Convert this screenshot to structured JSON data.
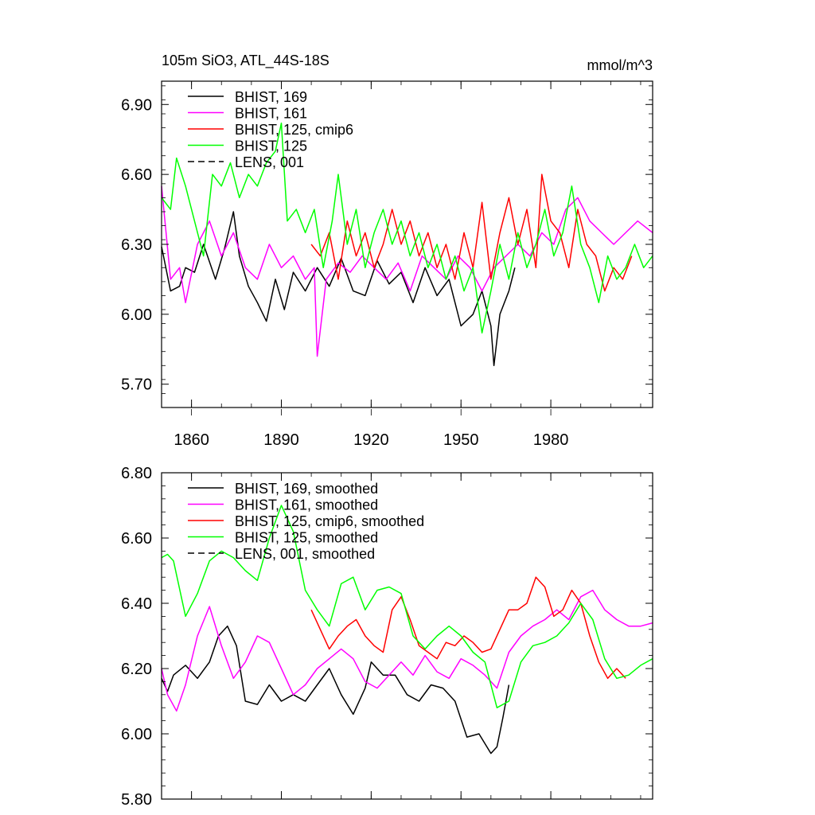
{
  "chart_data": [
    {
      "type": "line",
      "title": "105m SiO3, ATL_44S-18S",
      "units": "mmol/m^3",
      "xlim": [
        1850,
        2014
      ],
      "ylim": [
        5.6,
        7.0
      ],
      "x_ticks": [
        1860,
        1890,
        1920,
        1950,
        1980
      ],
      "x_tick_labels": [
        "1860",
        "1890",
        "1920",
        "1950",
        "1980"
      ],
      "y_ticks": [
        5.7,
        6.0,
        6.3,
        6.6,
        6.9
      ],
      "y_tick_labels": [
        "5.70",
        "6.00",
        "6.30",
        "6.60",
        "6.90"
      ],
      "legend_position": "top-left",
      "series": [
        {
          "name": "BHIST, 169",
          "color": "#000000",
          "dash": "solid",
          "x": [
            1850,
            1853,
            1856,
            1858,
            1861,
            1864,
            1868,
            1871,
            1874,
            1876,
            1879,
            1882,
            1885,
            1888,
            1891,
            1894,
            1898,
            1902,
            1906,
            1910,
            1914,
            1918,
            1922,
            1926,
            1930,
            1934,
            1938,
            1942,
            1946,
            1950,
            1954,
            1957,
            1960,
            1961,
            1963,
            1966,
            1968
          ],
          "values": [
            6.29,
            6.1,
            6.12,
            6.2,
            6.18,
            6.3,
            6.15,
            6.28,
            6.44,
            6.25,
            6.12,
            6.05,
            5.97,
            6.15,
            6.02,
            6.18,
            6.1,
            6.2,
            6.12,
            6.24,
            6.1,
            6.08,
            6.23,
            6.13,
            6.18,
            6.05,
            6.2,
            6.08,
            6.15,
            5.95,
            6.0,
            6.1,
            5.95,
            5.78,
            6.0,
            6.1,
            6.2
          ]
        },
        {
          "name": "BHIST, 161",
          "color": "#ff00ff",
          "dash": "solid",
          "x": [
            1850,
            1853,
            1856,
            1858,
            1862,
            1866,
            1870,
            1874,
            1878,
            1882,
            1886,
            1890,
            1894,
            1898,
            1901,
            1902,
            1905,
            1909,
            1913,
            1917,
            1921,
            1925,
            1929,
            1933,
            1937,
            1941,
            1945,
            1949,
            1953,
            1957,
            1961,
            1965,
            1969,
            1973,
            1977,
            1981,
            1985,
            1989,
            1993,
            1997,
            2001,
            2005,
            2009,
            2014
          ],
          "values": [
            6.55,
            6.15,
            6.2,
            6.05,
            6.3,
            6.4,
            6.25,
            6.35,
            6.2,
            6.15,
            6.3,
            6.2,
            6.25,
            6.15,
            6.2,
            5.82,
            6.15,
            6.22,
            6.18,
            6.25,
            6.2,
            6.15,
            6.22,
            6.1,
            6.25,
            6.2,
            6.15,
            6.25,
            6.2,
            6.1,
            6.2,
            6.25,
            6.3,
            6.25,
            6.35,
            6.3,
            6.45,
            6.5,
            6.4,
            6.35,
            6.3,
            6.35,
            6.4,
            6.35
          ]
        },
        {
          "name": "BHIST, 125, cmip6",
          "color": "#ff0000",
          "dash": "solid",
          "x": [
            1900,
            1903,
            1906,
            1909,
            1912,
            1915,
            1918,
            1921,
            1924,
            1927,
            1930,
            1933,
            1936,
            1939,
            1942,
            1945,
            1948,
            1951,
            1954,
            1957,
            1960,
            1963,
            1966,
            1969,
            1972,
            1975,
            1977,
            1980,
            1983,
            1986,
            1989,
            1992,
            1995,
            1998,
            2001,
            2004,
            2007
          ],
          "values": [
            6.3,
            6.25,
            6.35,
            6.15,
            6.4,
            6.25,
            6.35,
            6.2,
            6.3,
            6.45,
            6.3,
            6.4,
            6.25,
            6.35,
            6.2,
            6.3,
            6.15,
            6.35,
            6.2,
            6.48,
            6.15,
            6.35,
            6.5,
            6.3,
            6.45,
            6.2,
            6.6,
            6.4,
            6.35,
            6.2,
            6.45,
            6.3,
            6.25,
            6.1,
            6.2,
            6.15,
            6.25
          ]
        },
        {
          "name": "BHIST, 125",
          "color": "#00ff00",
          "dash": "solid",
          "x": [
            1850,
            1853,
            1855,
            1858,
            1861,
            1864,
            1867,
            1870,
            1873,
            1876,
            1879,
            1882,
            1885,
            1888,
            1890,
            1892,
            1895,
            1898,
            1901,
            1904,
            1907,
            1909,
            1912,
            1915,
            1918,
            1921,
            1924,
            1927,
            1930,
            1933,
            1936,
            1939,
            1942,
            1945,
            1948,
            1951,
            1954,
            1957,
            1960,
            1963,
            1966,
            1969,
            1972,
            1975,
            1978,
            1981,
            1984,
            1987,
            1990,
            1993,
            1996,
            1999,
            2002,
            2005,
            2008,
            2011,
            2014
          ],
          "values": [
            6.5,
            6.45,
            6.67,
            6.55,
            6.4,
            6.25,
            6.6,
            6.55,
            6.65,
            6.5,
            6.6,
            6.55,
            6.65,
            6.7,
            6.82,
            6.4,
            6.45,
            6.35,
            6.45,
            6.2,
            6.4,
            6.6,
            6.3,
            6.45,
            6.2,
            6.35,
            6.45,
            6.3,
            6.4,
            6.25,
            6.35,
            6.2,
            6.3,
            6.15,
            6.25,
            6.1,
            6.2,
            5.92,
            6.1,
            6.3,
            6.15,
            6.35,
            6.2,
            6.3,
            6.45,
            6.25,
            6.35,
            6.55,
            6.3,
            6.2,
            6.05,
            6.25,
            6.15,
            6.2,
            6.3,
            6.2,
            6.25
          ]
        }
      ]
    },
    {
      "type": "line",
      "title": "",
      "xlim": [
        1850,
        2014
      ],
      "ylim": [
        5.8,
        6.8
      ],
      "y_ticks": [
        5.8,
        6.0,
        6.2,
        6.4,
        6.6,
        6.8
      ],
      "y_tick_labels": [
        "5.80",
        "6.00",
        "6.20",
        "6.40",
        "6.60",
        "6.80"
      ],
      "legend_position": "top-left",
      "series": [
        {
          "name": "BHIST, 169, smoothed",
          "color": "#000000",
          "dash": "solid",
          "x": [
            1850,
            1852,
            1854,
            1858,
            1862,
            1866,
            1869,
            1872,
            1875,
            1878,
            1882,
            1886,
            1890,
            1894,
            1898,
            1902,
            1906,
            1910,
            1914,
            1918,
            1920,
            1924,
            1928,
            1932,
            1936,
            1940,
            1944,
            1948,
            1952,
            1956,
            1960,
            1962,
            1964,
            1966
          ],
          "values": [
            6.17,
            6.13,
            6.18,
            6.21,
            6.17,
            6.22,
            6.3,
            6.33,
            6.27,
            6.1,
            6.09,
            6.15,
            6.1,
            6.12,
            6.1,
            6.15,
            6.2,
            6.12,
            6.06,
            6.14,
            6.22,
            6.18,
            6.18,
            6.12,
            6.1,
            6.15,
            6.14,
            6.1,
            5.99,
            6.0,
            5.94,
            5.96,
            6.05,
            6.15
          ]
        },
        {
          "name": "BHIST, 161, smoothed",
          "color": "#ff00ff",
          "dash": "solid",
          "x": [
            1850,
            1852,
            1855,
            1858,
            1862,
            1866,
            1870,
            1874,
            1878,
            1882,
            1886,
            1890,
            1894,
            1898,
            1902,
            1906,
            1910,
            1914,
            1918,
            1922,
            1926,
            1930,
            1934,
            1938,
            1942,
            1946,
            1950,
            1954,
            1958,
            1962,
            1966,
            1970,
            1974,
            1978,
            1982,
            1986,
            1990,
            1994,
            1998,
            2002,
            2006,
            2010,
            2014
          ],
          "values": [
            6.2,
            6.12,
            6.07,
            6.15,
            6.3,
            6.39,
            6.27,
            6.17,
            6.22,
            6.3,
            6.28,
            6.2,
            6.12,
            6.15,
            6.2,
            6.23,
            6.26,
            6.23,
            6.16,
            6.14,
            6.18,
            6.22,
            6.18,
            6.24,
            6.19,
            6.17,
            6.23,
            6.21,
            6.18,
            6.14,
            6.25,
            6.3,
            6.33,
            6.35,
            6.38,
            6.35,
            6.42,
            6.44,
            6.38,
            6.35,
            6.33,
            6.33,
            6.34
          ]
        },
        {
          "name": "BHIST, 125, cmip6, smoothed",
          "color": "#ff0000",
          "dash": "solid",
          "x": [
            1900,
            1903,
            1906,
            1909,
            1912,
            1915,
            1918,
            1921,
            1924,
            1927,
            1930,
            1933,
            1936,
            1939,
            1942,
            1945,
            1948,
            1951,
            1954,
            1957,
            1960,
            1963,
            1966,
            1969,
            1972,
            1975,
            1978,
            1981,
            1984,
            1987,
            1990,
            1993,
            1996,
            1999,
            2002,
            2005
          ],
          "values": [
            6.38,
            6.32,
            6.26,
            6.3,
            6.33,
            6.35,
            6.3,
            6.27,
            6.25,
            6.38,
            6.42,
            6.35,
            6.27,
            6.25,
            6.23,
            6.28,
            6.27,
            6.3,
            6.28,
            6.25,
            6.26,
            6.32,
            6.38,
            6.38,
            6.4,
            6.48,
            6.45,
            6.36,
            6.38,
            6.44,
            6.4,
            6.3,
            6.22,
            6.17,
            6.2,
            6.17
          ]
        },
        {
          "name": "BHIST, 125, smoothed",
          "color": "#00ff00",
          "dash": "solid",
          "x": [
            1850,
            1852,
            1854,
            1858,
            1862,
            1866,
            1870,
            1874,
            1878,
            1882,
            1886,
            1890,
            1894,
            1898,
            1902,
            1906,
            1910,
            1914,
            1918,
            1922,
            1926,
            1930,
            1934,
            1938,
            1942,
            1946,
            1950,
            1954,
            1958,
            1962,
            1966,
            1970,
            1974,
            1978,
            1982,
            1986,
            1990,
            1994,
            1998,
            2002,
            2006,
            2010,
            2014
          ],
          "values": [
            6.54,
            6.55,
            6.53,
            6.36,
            6.43,
            6.53,
            6.56,
            6.54,
            6.5,
            6.47,
            6.6,
            6.7,
            6.62,
            6.44,
            6.38,
            6.33,
            6.46,
            6.48,
            6.38,
            6.44,
            6.45,
            6.43,
            6.3,
            6.26,
            6.3,
            6.33,
            6.3,
            6.25,
            6.22,
            6.08,
            6.1,
            6.22,
            6.27,
            6.28,
            6.3,
            6.34,
            6.4,
            6.35,
            6.23,
            6.17,
            6.18,
            6.21,
            6.23
          ]
        }
      ]
    }
  ],
  "legend": {
    "top": [
      {
        "label": "BHIST, 169",
        "color": "#000000",
        "dash": "solid"
      },
      {
        "label": "BHIST, 161",
        "color": "#ff00ff",
        "dash": "solid"
      },
      {
        "label": "BHIST, 125, cmip6",
        "color": "#ff0000",
        "dash": "solid"
      },
      {
        "label": "BHIST, 125",
        "color": "#00ff00",
        "dash": "solid"
      },
      {
        "label": "LENS, 001",
        "color": "#000000",
        "dash": "dashed"
      }
    ],
    "bottom": [
      {
        "label": "BHIST, 169, smoothed",
        "color": "#000000",
        "dash": "solid"
      },
      {
        "label": "BHIST, 161, smoothed",
        "color": "#ff00ff",
        "dash": "solid"
      },
      {
        "label": "BHIST, 125, cmip6, smoothed",
        "color": "#ff0000",
        "dash": "solid"
      },
      {
        "label": "BHIST, 125, smoothed",
        "color": "#00ff00",
        "dash": "solid"
      },
      {
        "label": "LENS, 001, smoothed",
        "color": "#000000",
        "dash": "dashed"
      }
    ]
  }
}
